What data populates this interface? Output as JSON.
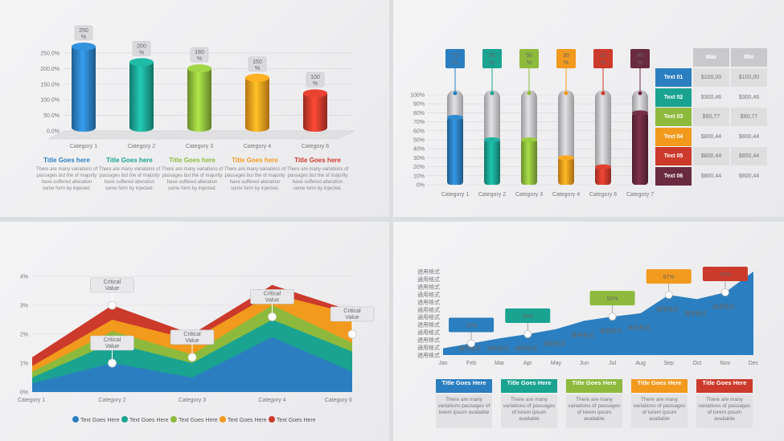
{
  "chart_data": [
    {
      "type": "bar",
      "categories": [
        "Category 1",
        "Category 2",
        "Category 3",
        "Category 4",
        "Category 6"
      ],
      "values": [
        250,
        200,
        180,
        150,
        100
      ],
      "ytick_labels": [
        "0.0%",
        "50.0%",
        "100.0%",
        "150.0%",
        "200.0%",
        "250.0%"
      ],
      "data_label_suffix": "%",
      "colors": [
        "#2b7fc0",
        "#1aa391",
        "#8dba3c",
        "#f29a1d",
        "#cc3a2b"
      ],
      "text_blocks": [
        {
          "title": "Title Goes here",
          "body": "There are many variations of passages but the of majority have suffered alteration some form by injected.",
          "color": "#2b7fc0"
        },
        {
          "title": "Title Goes here",
          "body": "There are many variations of passages but the of majority have suffered alteration some form by injected.",
          "color": "#1aa391"
        },
        {
          "title": "Title Goes here",
          "body": "There are many variations of passages but the of majority have suffered alteration some form by injected.",
          "color": "#8dba3c"
        },
        {
          "title": "Title Goes here",
          "body": "There are many variations of passages but the of majority have suffered alteration some form by injected.",
          "color": "#f29a1d"
        },
        {
          "title": "Title Goes here",
          "body": "There are many variations of passages but the of majority have suffered alteration some form by injected.",
          "color": "#cc3a2b"
        }
      ]
    },
    {
      "type": "bar",
      "categories": [
        "Category 1",
        "Category 2",
        "Category 3",
        "Category 4",
        "Category 6",
        "Category 7"
      ],
      "values": [
        75,
        50,
        50,
        30,
        20,
        80
      ],
      "labels": [
        "75",
        "50",
        "50",
        "30",
        "20",
        "80"
      ],
      "data_label_suffix": "%",
      "ytick_labels": [
        "0%",
        "10%",
        "20%",
        "30%",
        "40%",
        "50%",
        "60%",
        "70%",
        "80%",
        "90%",
        "100%"
      ],
      "ylim": [
        0,
        100
      ],
      "colors": [
        "#2b7fc0",
        "#1aa391",
        "#8dba3c",
        "#f29a1d",
        "#cc3a2b",
        "#6a2a3f"
      ],
      "table": {
        "headers": [
          "Max",
          "Min"
        ],
        "rows": [
          {
            "label": "Text 01",
            "max": "$100,00",
            "min": "$100,00",
            "color": "#2b7fc0"
          },
          {
            "label": "Text 02",
            "max": "$300,46",
            "min": "$300,46",
            "color": "#1aa391"
          },
          {
            "label": "Text 03",
            "max": "$90,77",
            "min": "$90,77",
            "color": "#8dba3c"
          },
          {
            "label": "Text 04",
            "max": "$800,44",
            "min": "$800,44",
            "color": "#f29a1d"
          },
          {
            "label": "Text 05",
            "max": "$800,44",
            "min": "$800,44",
            "color": "#cc3a2b"
          },
          {
            "label": "Text 06",
            "max": "$800,44",
            "min": "$800,44",
            "color": "#6a2a3f"
          }
        ]
      }
    },
    {
      "type": "area",
      "categories": [
        "Category 1",
        "Category 2",
        "Category 3",
        "Category 4",
        "Category 6"
      ],
      "ytick_labels": [
        "0%",
        "1%",
        "2%",
        "3%",
        "4%"
      ],
      "ylim": [
        0,
        4
      ],
      "stacked": true,
      "series": [
        {
          "name": "Text Goes Here",
          "values": [
            0.3,
            1.0,
            0.5,
            1.9,
            0.7
          ],
          "color": "#2b7fc0"
        },
        {
          "name": "Text Goes Here",
          "values": [
            0.5,
            1.7,
            1.0,
            2.5,
            1.4
          ],
          "color": "#1aa391"
        },
        {
          "name": "Text Goes Here",
          "values": [
            0.7,
            2.1,
            1.3,
            3.0,
            1.7
          ],
          "color": "#8dba3c"
        },
        {
          "name": "Text Goes Here",
          "values": [
            0.9,
            2.5,
            1.8,
            3.4,
            2.7
          ],
          "color": "#f29a1d"
        },
        {
          "name": "Text Goes Here",
          "values": [
            1.2,
            3.0,
            2.0,
            3.7,
            2.8
          ],
          "color": "#cc3a2b"
        }
      ],
      "callouts": [
        {
          "label": "Critical Value",
          "category": 1,
          "value": 3.0
        },
        {
          "label": "Critical Value",
          "category": 1,
          "value": 1.0
        },
        {
          "label": "Critical Value",
          "category": 2,
          "value": 1.2
        },
        {
          "label": "Critical Value",
          "category": 3,
          "value": 2.6
        },
        {
          "label": "Critical Value",
          "category": 4,
          "value": 2.0
        }
      ]
    },
    {
      "type": "area",
      "categories": [
        "Jan",
        "Feb",
        "Mar",
        "Apr",
        "May",
        "Jun",
        "Jul",
        "Aug",
        "Sep",
        "Oct",
        "Nov",
        "Dec"
      ],
      "values": [
        8,
        14,
        20,
        25,
        31,
        41,
        46,
        50,
        72,
        67,
        75,
        100
      ],
      "ytick_label": "通用格式",
      "ytick_count": 12,
      "point_label": "通用格式",
      "color": "#2b7fc0",
      "callouts": [
        {
          "label": "20%",
          "index": 1,
          "color": "#2b7fc0"
        },
        {
          "label": "26%",
          "index": 3,
          "color": "#1aa391"
        },
        {
          "label": "50%",
          "index": 6,
          "color": "#8dba3c"
        },
        {
          "label": "67%",
          "index": 8,
          "color": "#f29a1d"
        },
        {
          "label": "70%",
          "index": 10,
          "color": "#cc3a2b"
        }
      ],
      "boxes": [
        {
          "title": "Title Goes Here",
          "body": "There are many variations passages of lorem ipsum available",
          "color": "#2b7fc0"
        },
        {
          "title": "Title Goes Here",
          "body": "There are many variations of passages of lorem ipsum available",
          "color": "#1aa391"
        },
        {
          "title": "Title Goes Here",
          "body": "There are many variations of passages of lorem ipsum available",
          "color": "#8dba3c"
        },
        {
          "title": "Title Goes Here",
          "body": "There are many variations of passages of lorem ipsum available",
          "color": "#f29a1d"
        },
        {
          "title": "Title Goes Here",
          "body": "There are many variations of passages of lorem ipsum available",
          "color": "#cc3a2b"
        }
      ]
    }
  ]
}
